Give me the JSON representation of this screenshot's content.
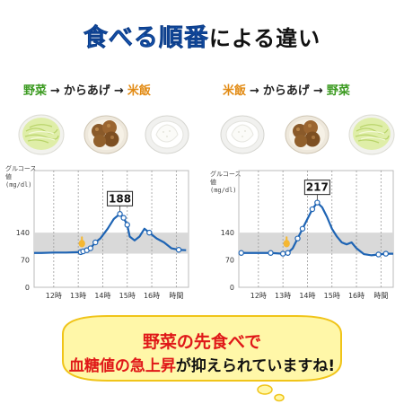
{
  "title": {
    "highlight": "食べる順番",
    "rest": "による違い"
  },
  "left_order": [
    "野菜",
    "からあげ",
    "米飯"
  ],
  "right_order": [
    "米飯",
    "からあげ",
    "野菜"
  ],
  "arrow": "→",
  "message": {
    "line1": "野菜の先食べで",
    "line2_red": "血糖値の急上昇",
    "line2_black": "が抑えられていますね!"
  },
  "colors": {
    "curve": "#1e64b4",
    "band": "#d9d9d9",
    "veg": "#3a9a1f",
    "rice": "#e28a12",
    "accent": "#e01818"
  },
  "chart_data": [
    {
      "type": "line",
      "ylabel": "グルコース値 (mg/dl)",
      "ylabel_lines": [
        "グルコース",
        "値",
        "(mg/dl)"
      ],
      "y_ticks": [
        0,
        70,
        140
      ],
      "x_ticks": [
        "12時",
        "13時",
        "14時",
        "15時",
        "16時",
        "時間"
      ],
      "band": [
        100,
        140
      ],
      "peak_label": "188",
      "x": [
        11.2,
        11.5,
        12.0,
        12.5,
        13.0,
        13.1,
        13.2,
        13.35,
        13.5,
        13.7,
        13.9,
        14.2,
        14.45,
        14.7,
        14.85,
        15.0,
        15.1,
        15.3,
        15.5,
        15.7,
        15.9,
        16.2,
        16.5,
        16.8,
        17.1,
        17.4
      ],
      "y": [
        88,
        88,
        89,
        89,
        90,
        90,
        92,
        95,
        100,
        115,
        125,
        150,
        175,
        188,
        178,
        160,
        130,
        120,
        130,
        150,
        140,
        125,
        115,
        100,
        96,
        95
      ],
      "markers_x": [
        13.1,
        13.2,
        13.35,
        13.5,
        13.7,
        14.7,
        14.85,
        15.0,
        15.9,
        17.1
      ],
      "ylim": [
        0,
        230
      ],
      "xlim": [
        11.2,
        17.5
      ]
    },
    {
      "type": "line",
      "ylabel": "グルコース値 (mg/dl)",
      "ylabel_lines": [
        "グルコース",
        "値",
        "(mg/dl)"
      ],
      "y_ticks": [
        0,
        70,
        140
      ],
      "x_ticks": [
        "12時",
        "13時",
        "14時",
        "15時",
        "16時",
        "時間"
      ],
      "band": [
        100,
        140
      ],
      "peak_label": "217",
      "x": [
        11.2,
        11.5,
        12.0,
        12.5,
        13.0,
        13.2,
        13.4,
        13.6,
        13.8,
        14.0,
        14.2,
        14.4,
        14.6,
        14.8,
        15.0,
        15.2,
        15.4,
        15.6,
        15.8,
        16.0,
        16.3,
        16.6,
        16.9,
        17.2,
        17.5
      ],
      "y": [
        88,
        88,
        88,
        88,
        86,
        88,
        100,
        125,
        150,
        175,
        200,
        217,
        205,
        180,
        150,
        130,
        115,
        110,
        115,
        100,
        85,
        82,
        84,
        86,
        86
      ],
      "markers_x": [
        11.3,
        12.5,
        13.0,
        13.2,
        13.6,
        13.8,
        14.2,
        14.4,
        16.9,
        17.2
      ],
      "ylim": [
        0,
        230
      ],
      "xlim": [
        11.2,
        17.5
      ]
    }
  ]
}
